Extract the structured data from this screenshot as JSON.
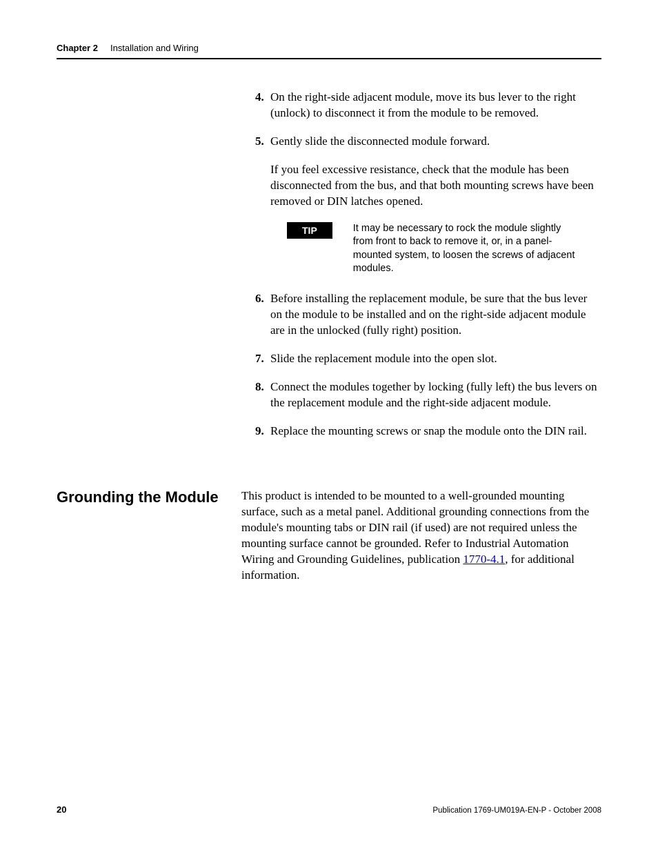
{
  "header": {
    "chapter_label": "Chapter 2",
    "chapter_title": "Installation and Wiring"
  },
  "steps": {
    "s4": {
      "num": "4.",
      "text": "On the right-side adjacent module, move its bus lever to the right (unlock) to disconnect it from the module to be removed."
    },
    "s5": {
      "num": "5.",
      "text": "Gently slide the disconnected module forward."
    },
    "s5_follow": "If you feel excessive resistance, check that the module has been disconnected from the bus, and that both mounting screws have been removed or DIN latches opened.",
    "tip": {
      "label": "TIP",
      "text": "It may be necessary to rock the module slightly from front to back to remove it, or, in a panel-mounted system, to loosen the screws of adjacent modules."
    },
    "s6": {
      "num": "6.",
      "text": "Before installing the replacement module, be sure that the bus lever on the module to be installed and on the right-side adjacent module are in the unlocked (fully right) position."
    },
    "s7": {
      "num": "7.",
      "text": "Slide the replacement module into the open slot."
    },
    "s8": {
      "num": "8.",
      "text": "Connect the modules together by locking (fully left) the bus levers on the replacement module and the right-side adjacent module."
    },
    "s9": {
      "num": "9.",
      "text": "Replace the mounting screws or snap the module onto the DIN rail."
    }
  },
  "section": {
    "heading": "Grounding the Module",
    "body_pre": "This product is intended to be mounted to a well-grounded mounting surface, such as a metal panel. Additional grounding connections from the module's mounting tabs or DIN rail (if used) are not required unless the mounting surface cannot be grounded. Refer to Industrial Automation Wiring and Grounding Guidelines, publication ",
    "link_text": "1770-4.1",
    "body_post": ", for additional information."
  },
  "footer": {
    "page": "20",
    "publication": "Publication 1769-UM019A-EN-P - October 2008"
  }
}
